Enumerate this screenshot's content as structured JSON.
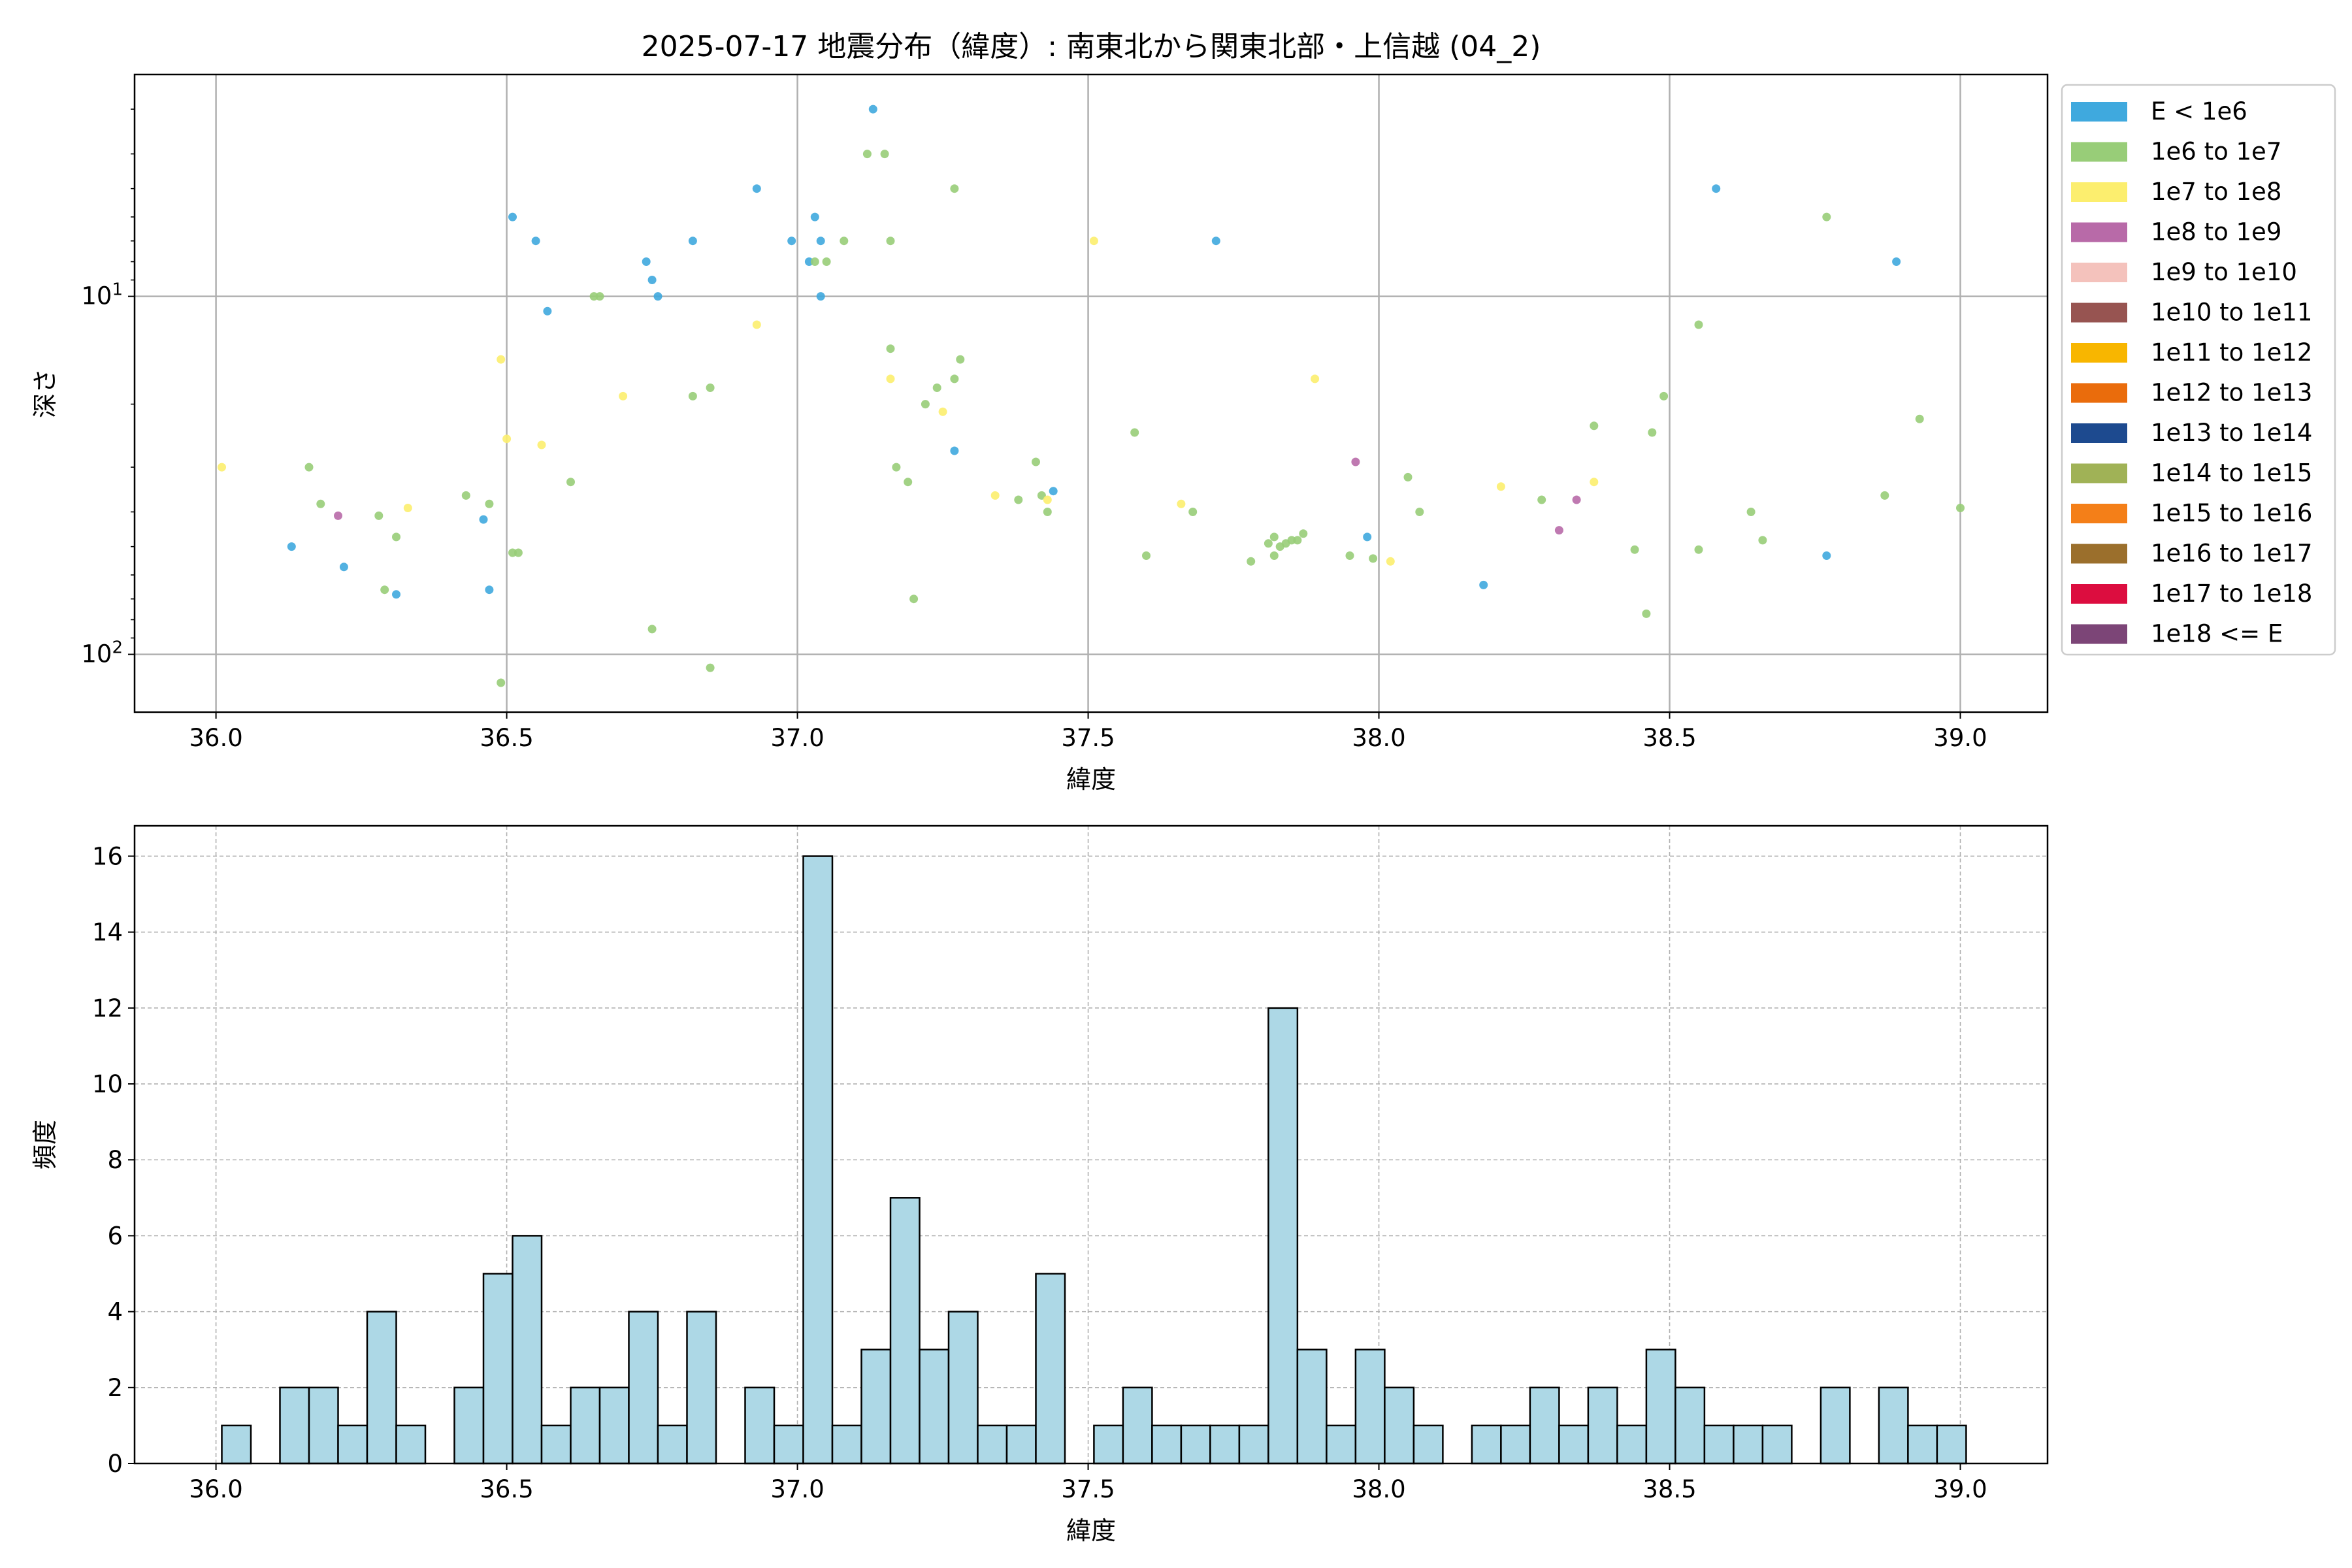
{
  "chart_data": [
    {
      "type": "scatter",
      "title": "2025-07-17 地震分布（緯度）: 南東北から関東北部・上信越 (04_2)",
      "xlabel": "緯度",
      "ylabel": "深さ",
      "xlim": [
        35.86,
        39.15
      ],
      "ylim": [
        145,
        2.4
      ],
      "yscale": "log",
      "y_inverted": true,
      "grid": true,
      "legend_placement": "outside-right",
      "xticks": [
        "36.0",
        "36.5",
        "37.0",
        "37.5",
        "38.0",
        "38.5",
        "39.0"
      ],
      "xtick_values": [
        36.0,
        36.5,
        37.0,
        37.5,
        38.0,
        38.5,
        39.0
      ],
      "yticks": [
        {
          "value": 10,
          "base": "10",
          "exp": "1"
        },
        {
          "value": 100,
          "base": "10",
          "exp": "2"
        }
      ],
      "legend": [
        {
          "label": "E < 1e6",
          "color": "#3fa9de"
        },
        {
          "label": "1e6 to 1e7",
          "color": "#98cd78"
        },
        {
          "label": "1e7 to 1e8",
          "color": "#fcee6e"
        },
        {
          "label": "1e8 to 1e9",
          "color": "#b86aa8"
        },
        {
          "label": "1e9 to 1e10",
          "color": "#f4c2bc"
        },
        {
          "label": "1e10 to 1e11",
          "color": "#975451"
        },
        {
          "label": "1e11 to 1e12",
          "color": "#f8b600"
        },
        {
          "label": "1e12 to 1e13",
          "color": "#ea6c0c"
        },
        {
          "label": "1e13 to 1e14",
          "color": "#1d4a8f"
        },
        {
          "label": "1e14 to 1e15",
          "color": "#a0b256"
        },
        {
          "label": "1e15 to 1e16",
          "color": "#f47f18"
        },
        {
          "label": "1e16 to 1e17",
          "color": "#9b6f2c"
        },
        {
          "label": "1e17 to 1e18",
          "color": "#dc0d3f"
        },
        {
          "label": "1e18 <= E",
          "color": "#7c4577"
        }
      ],
      "series": [
        {
          "name": "E < 1e6",
          "color": "#3fa9de",
          "points": [
            [
              36.13,
              50
            ],
            [
              36.22,
              57
            ],
            [
              36.31,
              68
            ],
            [
              36.46,
              42
            ],
            [
              36.47,
              66
            ],
            [
              36.51,
              6
            ],
            [
              36.55,
              7
            ],
            [
              36.57,
              11
            ],
            [
              36.74,
              8
            ],
            [
              36.75,
              9
            ],
            [
              36.76,
              10
            ],
            [
              36.82,
              7
            ],
            [
              36.93,
              5
            ],
            [
              36.99,
              7
            ],
            [
              37.02,
              8
            ],
            [
              37.03,
              6
            ],
            [
              37.04,
              7
            ],
            [
              37.04,
              10
            ],
            [
              37.13,
              3
            ],
            [
              37.27,
              27
            ],
            [
              37.44,
              35
            ],
            [
              37.72,
              7
            ],
            [
              37.98,
              47
            ],
            [
              38.18,
              64
            ],
            [
              38.58,
              5
            ],
            [
              38.89,
              8
            ],
            [
              38.77,
              53
            ]
          ]
        },
        {
          "name": "1e6 to 1e7",
          "color": "#98cd78",
          "points": [
            [
              36.16,
              30
            ],
            [
              36.18,
              38
            ],
            [
              36.28,
              41
            ],
            [
              36.31,
              47
            ],
            [
              36.29,
              66
            ],
            [
              36.43,
              36
            ],
            [
              36.47,
              38
            ],
            [
              36.51,
              52
            ],
            [
              36.52,
              52
            ],
            [
              36.61,
              33
            ],
            [
              36.65,
              10
            ],
            [
              36.66,
              10
            ],
            [
              36.75,
              85
            ],
            [
              36.82,
              19
            ],
            [
              36.85,
              18
            ],
            [
              36.85,
              109
            ],
            [
              36.49,
              120
            ],
            [
              37.03,
              8
            ],
            [
              37.05,
              8
            ],
            [
              37.08,
              7
            ],
            [
              37.12,
              4
            ],
            [
              37.15,
              4
            ],
            [
              37.16,
              7
            ],
            [
              37.16,
              14
            ],
            [
              37.17,
              30
            ],
            [
              37.19,
              33
            ],
            [
              37.2,
              70
            ],
            [
              37.22,
              20
            ],
            [
              37.24,
              18
            ],
            [
              37.27,
              17
            ],
            [
              37.28,
              15
            ],
            [
              37.27,
              5
            ],
            [
              37.38,
              37
            ],
            [
              37.41,
              29
            ],
            [
              37.42,
              36
            ],
            [
              37.43,
              40
            ],
            [
              37.58,
              24
            ],
            [
              37.6,
              53
            ],
            [
              37.68,
              40
            ],
            [
              37.78,
              55
            ],
            [
              37.81,
              49
            ],
            [
              37.82,
              47
            ],
            [
              37.84,
              49
            ],
            [
              37.85,
              48
            ],
            [
              37.87,
              46
            ],
            [
              37.82,
              53
            ],
            [
              37.83,
              50
            ],
            [
              37.86,
              48
            ],
            [
              37.95,
              53
            ],
            [
              37.99,
              54
            ],
            [
              38.05,
              32
            ],
            [
              38.07,
              40
            ],
            [
              38.28,
              37
            ],
            [
              38.37,
              23
            ],
            [
              38.44,
              51
            ],
            [
              38.47,
              24
            ],
            [
              38.49,
              19
            ],
            [
              38.55,
              12
            ],
            [
              38.55,
              51
            ],
            [
              38.64,
              40
            ],
            [
              38.66,
              48
            ],
            [
              38.46,
              77
            ],
            [
              38.77,
              6
            ],
            [
              38.87,
              36
            ],
            [
              38.93,
              22
            ],
            [
              39.0,
              39
            ]
          ]
        },
        {
          "name": "1e7 to 1e8",
          "color": "#fcee6e",
          "points": [
            [
              36.01,
              30
            ],
            [
              36.33,
              39
            ],
            [
              36.49,
              15
            ],
            [
              36.5,
              25
            ],
            [
              36.56,
              26
            ],
            [
              36.7,
              19
            ],
            [
              36.93,
              12
            ],
            [
              37.16,
              17
            ],
            [
              37.25,
              21
            ],
            [
              37.34,
              36
            ],
            [
              37.43,
              37
            ],
            [
              37.51,
              7
            ],
            [
              37.66,
              38
            ],
            [
              37.89,
              17
            ],
            [
              38.02,
              55
            ],
            [
              38.21,
              34
            ],
            [
              38.37,
              33
            ]
          ]
        },
        {
          "name": "1e8 to 1e9",
          "color": "#b86aa8",
          "points": [
            [
              36.21,
              41
            ],
            [
              37.96,
              29
            ],
            [
              38.31,
              45
            ],
            [
              38.34,
              37
            ]
          ]
        }
      ]
    },
    {
      "type": "bar",
      "title": "",
      "xlabel": "緯度",
      "ylabel": "頻度",
      "xlim": [
        35.86,
        39.15
      ],
      "ylim": [
        0,
        16.8
      ],
      "grid": true,
      "bin_width": 0.05,
      "bar_color": "#add8e6",
      "edge_color": "#000000",
      "xticks": [
        "36.0",
        "36.5",
        "37.0",
        "37.5",
        "38.0",
        "38.5",
        "39.0"
      ],
      "xtick_values": [
        36.0,
        36.5,
        37.0,
        37.5,
        38.0,
        38.5,
        39.0
      ],
      "yticks": [
        "0",
        "2",
        "4",
        "6",
        "8",
        "10",
        "12",
        "14",
        "16"
      ],
      "ytick_values": [
        0,
        2,
        4,
        6,
        8,
        10,
        12,
        14,
        16
      ],
      "bin_starts": [
        36.01,
        36.06,
        36.11,
        36.16,
        36.21,
        36.26,
        36.31,
        36.36,
        36.41,
        36.46,
        36.51,
        36.56,
        36.61,
        36.66,
        36.71,
        36.76,
        36.81,
        36.86,
        36.91,
        36.96,
        37.01,
        37.06,
        37.11,
        37.16,
        37.21,
        37.26,
        37.31,
        37.36,
        37.41,
        37.46,
        37.51,
        37.56,
        37.61,
        37.66,
        37.71,
        37.76,
        37.81,
        37.86,
        37.91,
        37.96,
        38.01,
        38.06,
        38.11,
        38.16,
        38.21,
        38.26,
        38.31,
        38.36,
        38.41,
        38.46,
        38.51,
        38.56,
        38.61,
        38.66,
        38.71,
        38.76,
        38.81,
        38.86,
        38.91,
        38.96
      ],
      "values": [
        1,
        0,
        2,
        2,
        1,
        4,
        1,
        0,
        2,
        5,
        6,
        1,
        2,
        2,
        4,
        1,
        4,
        0,
        2,
        1,
        16,
        1,
        3,
        7,
        3,
        4,
        1,
        1,
        5,
        0,
        1,
        2,
        1,
        1,
        1,
        1,
        12,
        3,
        1,
        3,
        2,
        1,
        0,
        1,
        1,
        2,
        1,
        2,
        1,
        3,
        2,
        1,
        1,
        1,
        0,
        2,
        0,
        2,
        1,
        1
      ]
    }
  ]
}
